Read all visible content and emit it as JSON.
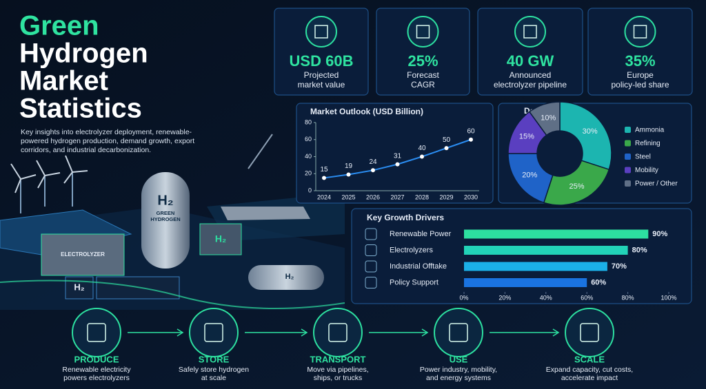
{
  "header": {
    "title_lines": [
      "Green",
      "Hydrogen",
      "Market",
      "Statistics"
    ],
    "subtitle_lines": [
      "Key insights into electrolyzer deployment, renewable-",
      "powered hydrogen production, demand growth, export",
      "corridors, and industrial decarbonization."
    ]
  },
  "stats": [
    {
      "value": "USD 60B",
      "label": [
        "Projected",
        "market value"
      ]
    },
    {
      "value": "25%",
      "label": [
        "Forecast",
        "CAGR"
      ]
    },
    {
      "value": "40 GW",
      "label": [
        "Announced",
        "electrolyzer pipeline"
      ]
    },
    {
      "value": "35%",
      "label": [
        "Europe",
        "policy-led share"
      ]
    }
  ],
  "illustration": {
    "symbol": "H₂",
    "tank_label": [
      "GREEN",
      "HYDROGEN"
    ],
    "unit_label": "ELECTROLYZER"
  },
  "chart_data": [
    {
      "type": "line",
      "title": "Market Outlook (USD Billion)",
      "categories": [
        "2024",
        "2025",
        "2026",
        "2027",
        "2028",
        "2029",
        "2030"
      ],
      "values": [
        15,
        19,
        24,
        31,
        40,
        50,
        60
      ],
      "color": "#2a8cf0",
      "ylim": [
        0,
        80
      ],
      "yticks": [
        0,
        20,
        40,
        60,
        80
      ]
    },
    {
      "type": "pie",
      "title": "Demand Mix",
      "categories": [
        "Ammonia",
        "Refining",
        "Steel",
        "Mobility",
        "Power / Other"
      ],
      "values": [
        30,
        25,
        20,
        15,
        10
      ],
      "value_labels": [
        "30%",
        "25%",
        "20%",
        "15%",
        "10%"
      ],
      "colors": [
        "#1cb5b0",
        "#3aa84a",
        "#1f63c8",
        "#5a3fc0",
        "#5f6f86"
      ]
    },
    {
      "type": "hbar",
      "title": "Key Growth Drivers",
      "categories": [
        "Renewable Power",
        "Electrolyzers",
        "Industrial Offtake",
        "Policy Support"
      ],
      "values": [
        90,
        80,
        70,
        60
      ],
      "value_labels": [
        "90%",
        "80%",
        "70%",
        "60%"
      ],
      "colors": [
        "#2de0a0",
        "#22d3b8",
        "#1bb0e8",
        "#1a73e0"
      ],
      "xlim": [
        0,
        100
      ],
      "xticks": [
        {
          "value": 0,
          "label": "0%"
        },
        {
          "value": 20,
          "label": "20%"
        },
        {
          "value": 40,
          "label": "40%"
        },
        {
          "value": 60,
          "label": "60%"
        },
        {
          "value": 80,
          "label": "80%"
        },
        {
          "value": 100,
          "label": "100%"
        }
      ]
    }
  ],
  "steps": [
    {
      "title": "PRODUCE",
      "text": [
        "Renewable electricity",
        "powers electrolyzers"
      ]
    },
    {
      "title": "STORE",
      "text": [
        "Safely store hydrogen",
        "at scale"
      ]
    },
    {
      "title": "TRANSPORT",
      "text": [
        "Move via pipelines,",
        "ships, or trucks"
      ]
    },
    {
      "title": "USE",
      "text": [
        "Power industry, mobility,",
        "and energy systems"
      ]
    },
    {
      "title": "SCALE",
      "text": [
        "Expand capacity, cut costs,",
        "accelerate impact"
      ]
    }
  ]
}
